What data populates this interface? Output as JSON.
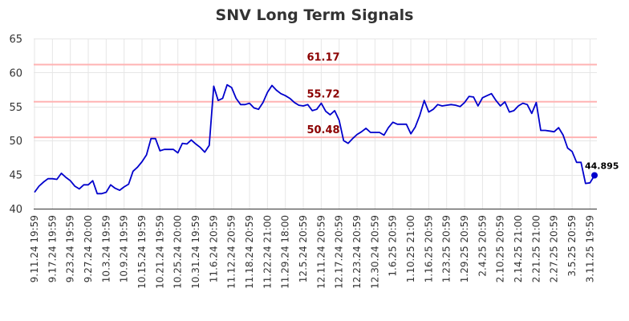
{
  "chart_data": {
    "type": "line",
    "title": "SNV Long Term Signals",
    "xlabel": "",
    "ylabel": "",
    "ylim": [
      40,
      65
    ],
    "yticks": [
      40,
      45,
      50,
      55,
      60,
      65
    ],
    "grid": true,
    "colors": {
      "line": "#0000cc",
      "level": "#ffb3b3",
      "level_label": "#8b0000",
      "grid": "#e6e6e6"
    },
    "levels": [
      {
        "value": 61.17,
        "label": "61.17"
      },
      {
        "value": 55.72,
        "label": "55.72"
      },
      {
        "value": 50.48,
        "label": "50.48"
      }
    ],
    "last_value_label": "44.895",
    "x_tick_labels": [
      "9.11.24 19:59",
      "9.17.24 19:59",
      "9.23.24 19:59",
      "9.27.24 20:00",
      "10.3.24 19:59",
      "10.9.24 19:59",
      "10.15.24 19:59",
      "10.21.24 19:59",
      "10.25.24 20:00",
      "10.31.24 19:59",
      "11.6.24 20:59",
      "11.12.24 20:59",
      "11.18.24 20:59",
      "11.22.24 21:00",
      "11.29.24 18:00",
      "12.5.24 20:59",
      "12.11.24 20:59",
      "12.17.24 20:59",
      "12.23.24 20:59",
      "12.30.24 20:59",
      "1.6.25 20:59",
      "1.10.25 21:00",
      "1.16.25 20:59",
      "1.23.25 20:59",
      "1.29.25 20:59",
      "2.4.25 20:59",
      "2.10.25 20:59",
      "2.14.25 21:00",
      "2.21.25 21:00",
      "2.27.25 20:59",
      "3.5.25 20:59",
      "3.11.25 19:59"
    ],
    "tick_every": 4,
    "values": [
      42.4,
      43.3,
      43.9,
      44.4,
      44.4,
      44.3,
      45.2,
      44.6,
      44.1,
      43.3,
      42.9,
      43.5,
      43.5,
      44.1,
      42.2,
      42.2,
      42.4,
      43.5,
      43.0,
      42.7,
      43.2,
      43.6,
      45.5,
      46.1,
      46.9,
      47.9,
      50.3,
      50.3,
      48.5,
      48.7,
      48.7,
      48.7,
      48.2,
      49.6,
      49.5,
      50.1,
      49.5,
      49.0,
      48.3,
      49.3,
      58.0,
      55.9,
      56.2,
      58.2,
      57.8,
      56.2,
      55.3,
      55.3,
      55.5,
      54.8,
      54.6,
      55.6,
      57.1,
      58.1,
      57.4,
      56.9,
      56.6,
      56.2,
      55.6,
      55.2,
      55.1,
      55.3,
      54.4,
      54.6,
      55.5,
      54.3,
      53.8,
      54.4,
      53.0,
      50.0,
      49.6,
      50.3,
      50.9,
      51.3,
      51.8,
      51.2,
      51.2,
      51.2,
      50.8,
      51.9,
      52.7,
      52.4,
      52.4,
      52.4,
      51.0,
      52.0,
      53.7,
      55.9,
      54.2,
      54.6,
      55.3,
      55.1,
      55.2,
      55.3,
      55.2,
      55.0,
      55.6,
      56.5,
      56.4,
      55.1,
      56.3,
      56.6,
      56.9,
      55.9,
      55.1,
      55.7,
      54.2,
      54.4,
      55.1,
      55.5,
      55.3,
      54.0,
      55.6,
      51.5,
      51.5,
      51.4,
      51.3,
      51.9,
      50.8,
      48.9,
      48.4,
      46.8,
      46.8,
      43.7,
      43.8,
      44.895
    ]
  }
}
